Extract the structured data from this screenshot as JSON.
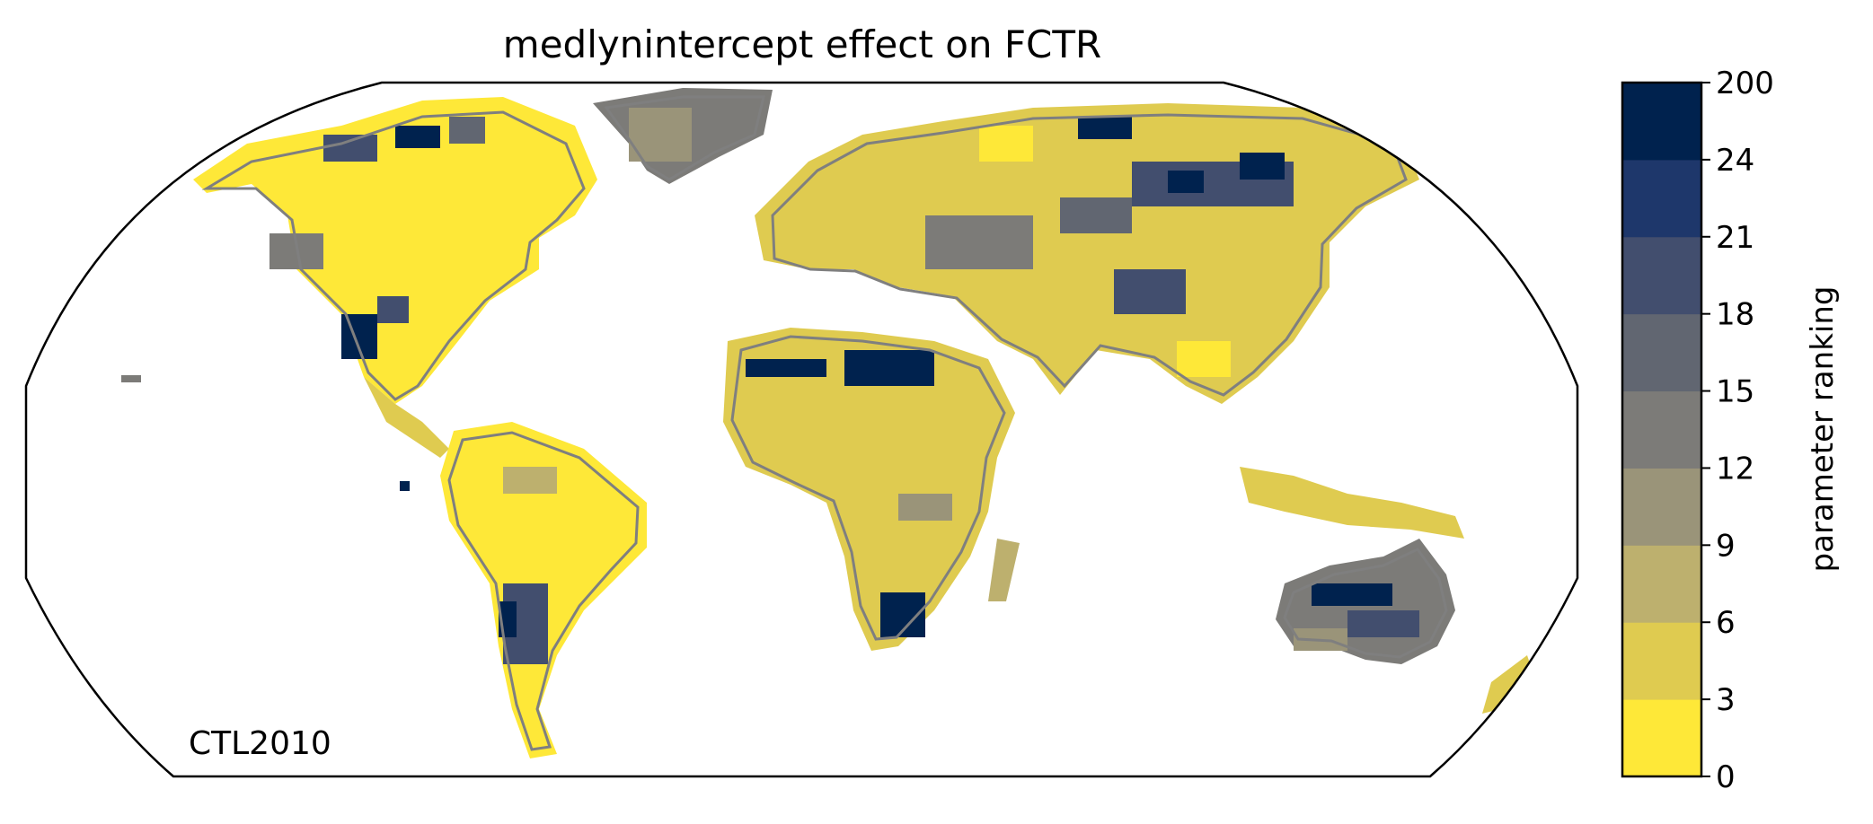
{
  "title": "medlynintercept effect on FCTR",
  "panel_label": "CTL2010",
  "colorbar": {
    "label": "parameter ranking",
    "ticks": [
      "0",
      "3",
      "6",
      "9",
      "12",
      "15",
      "18",
      "21",
      "24",
      "200"
    ],
    "colors": [
      "#fee838",
      "#dfcb50",
      "#bdb06e",
      "#9a9479",
      "#7c7b78",
      "#616671",
      "#424e6e",
      "#1e376b",
      "#00224e"
    ]
  },
  "map": {
    "projection": "robinson",
    "coastline_color": "#7f7f7f",
    "frame_color": "#000000"
  }
}
